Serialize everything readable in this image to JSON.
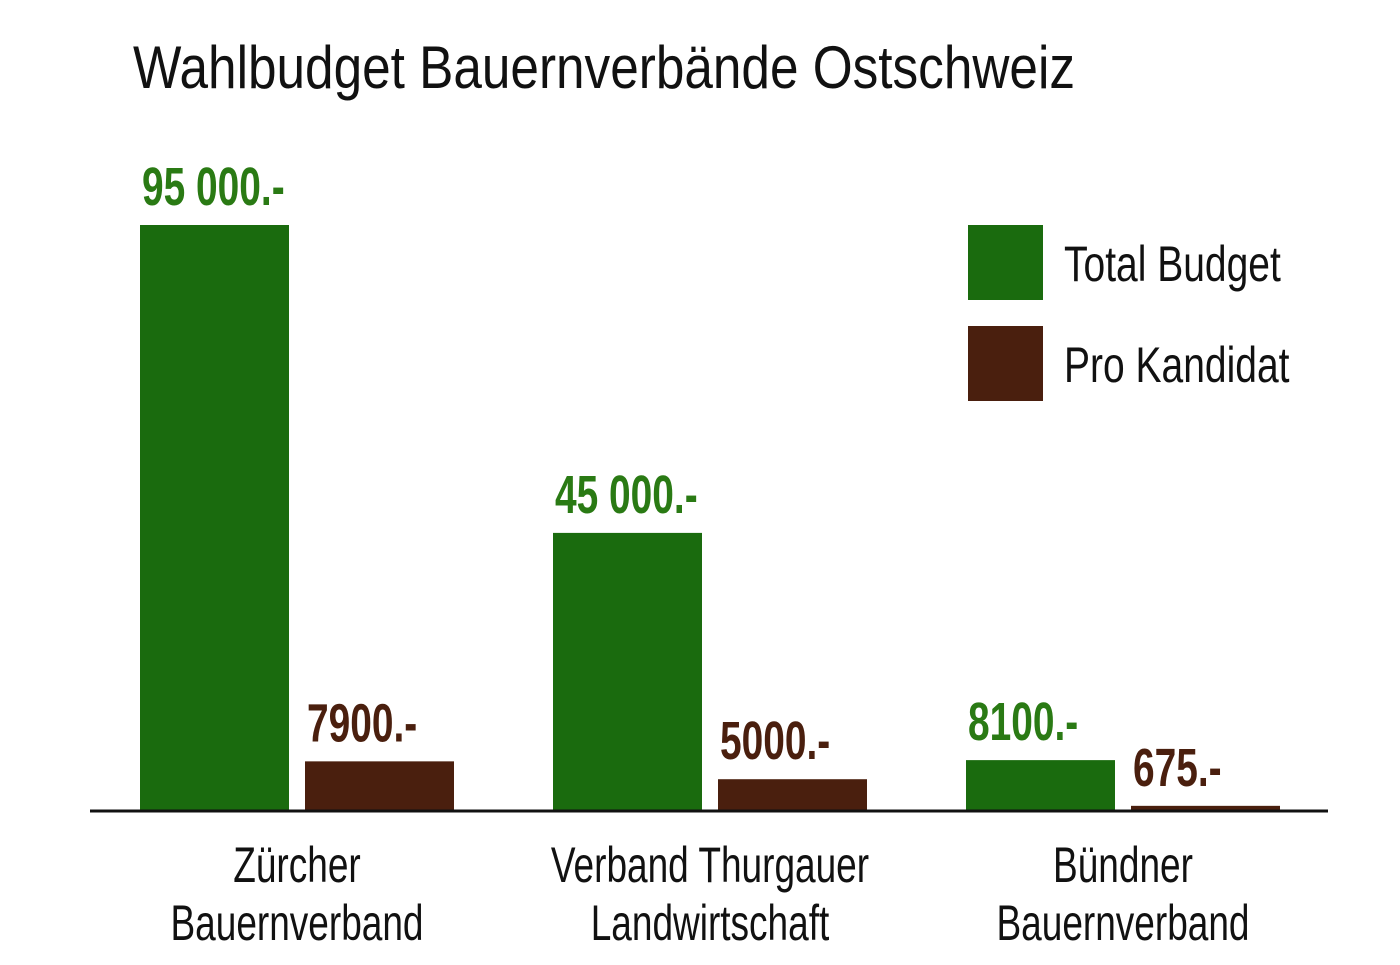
{
  "chart_data": {
    "type": "bar",
    "title": "Wahlbudget Bauernverbände Ostschweiz",
    "categories": [
      [
        "Zürcher",
        "Bauernverband"
      ],
      [
        "Verband Thurgauer",
        "Landwirtschaft"
      ],
      [
        "Bündner",
        "Bauernverband"
      ]
    ],
    "series": [
      {
        "name": "Total Budget",
        "color": "#1a6b0e",
        "label_color": "#2a7a14",
        "values": [
          95000,
          45000,
          8100
        ],
        "labels": [
          "95 000.-",
          "45 000.-",
          "8100.-"
        ]
      },
      {
        "name": "Pro Kandidat",
        "color": "#4a1f0e",
        "label_color": "#4a1f0e",
        "values": [
          7900,
          5000,
          675
        ],
        "labels": [
          "7900.-",
          "5000.-",
          "675.-"
        ]
      }
    ],
    "ylim": [
      0,
      95000
    ],
    "grid": false,
    "legend": "top-right",
    "xlabel": "",
    "ylabel": ""
  }
}
